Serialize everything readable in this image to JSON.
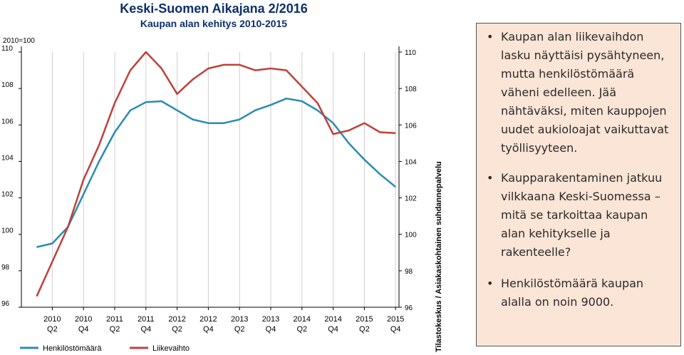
{
  "chart_data": {
    "type": "line",
    "title": "Keski-Suomen Aikajana 2/2016",
    "subtitle": "Kaupan alan kehitys 2010-2015",
    "index_base": "2010=100",
    "ylim": [
      96,
      110
    ],
    "yticks": [
      96,
      98,
      100,
      102,
      104,
      106,
      108,
      110
    ],
    "x": [
      "2010Q1",
      "2010Q2",
      "2010Q3",
      "2010Q4",
      "2011Q1",
      "2011Q2",
      "2011Q3",
      "2011Q4",
      "2012Q1",
      "2012Q2",
      "2012Q3",
      "2012Q4",
      "2013Q1",
      "2013Q2",
      "2013Q3",
      "2013Q4",
      "2014Q1",
      "2014Q2",
      "2014Q3",
      "2014Q4",
      "2015Q1",
      "2015Q2",
      "2015Q3",
      "2015Q4"
    ],
    "xtick_labels": [
      {
        "top": "2010",
        "bottom": "Q2"
      },
      {
        "top": "2010",
        "bottom": "Q4"
      },
      {
        "top": "2011",
        "bottom": "Q2"
      },
      {
        "top": "2011",
        "bottom": "Q4"
      },
      {
        "top": "2012",
        "bottom": "Q2"
      },
      {
        "top": "2012",
        "bottom": "Q4"
      },
      {
        "top": "2013",
        "bottom": "Q2"
      },
      {
        "top": "2013",
        "bottom": "Q4"
      },
      {
        "top": "2014",
        "bottom": "Q2"
      },
      {
        "top": "2014",
        "bottom": "Q4"
      },
      {
        "top": "2015",
        "bottom": "Q2"
      },
      {
        "top": "2015",
        "bottom": "Q4"
      }
    ],
    "series": [
      {
        "name": "Henkilöstömäärä",
        "color": "#2a8bb0",
        "values": [
          99.3,
          99.5,
          100.4,
          102.2,
          104.0,
          105.6,
          106.8,
          107.25,
          107.3,
          106.8,
          106.3,
          106.1,
          106.1,
          106.3,
          106.8,
          107.1,
          107.45,
          107.3,
          106.8,
          106.1,
          105.0,
          104.1,
          103.3,
          102.6
        ]
      },
      {
        "name": "Liikevaihto",
        "color": "#c0403a",
        "values": [
          96.6,
          98.5,
          100.4,
          103.0,
          104.9,
          107.2,
          109.0,
          110.0,
          109.1,
          107.7,
          108.5,
          109.1,
          109.3,
          109.3,
          109.0,
          109.1,
          109.0,
          108.1,
          107.2,
          105.5,
          105.7,
          106.1,
          105.6,
          105.55
        ]
      }
    ],
    "grid": "vertical",
    "legend": "bottom-left"
  },
  "source": "Tilastokeskus / Asiakaskohtainen suhdannepalvelu",
  "notes": [
    "Kaupan alan liikevaihdon lasku näyttäisi pysähtyneen, mutta henkilöstömäärä väheni edelleen. Jää nähtäväksi, miten kauppojen uudet aukioloajat vaikuttavat työllisyyteen.",
    "Kaupparakentaminen jatkuu vilkkaana Keski-Suomessa – mitä se tarkoittaa kaupan alan kehitykselle ja rakenteelle?",
    "Henkilöstömäärä kaupan alalla on noin 9000."
  ]
}
